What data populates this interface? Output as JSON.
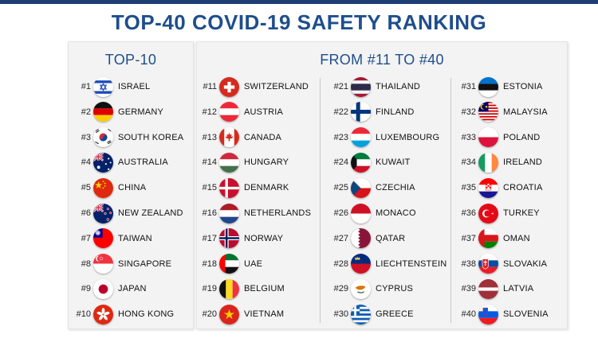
{
  "title": "TOP-40 COVID-19 SAFETY RANKING",
  "top10": {
    "heading": "TOP-10",
    "entries": [
      {
        "rank": "#1",
        "country": "ISRAEL",
        "flag": "israel-flag-icon"
      },
      {
        "rank": "#2",
        "country": "GERMANY",
        "flag": "germany-flag-icon"
      },
      {
        "rank": "#3",
        "country": "SOUTH KOREA",
        "flag": "south-korea-flag-icon"
      },
      {
        "rank": "#4",
        "country": "AUSTRALIA",
        "flag": "australia-flag-icon"
      },
      {
        "rank": "#5",
        "country": "CHINA",
        "flag": "china-flag-icon"
      },
      {
        "rank": "#6",
        "country": "NEW ZEALAND",
        "flag": "new-zealand-flag-icon"
      },
      {
        "rank": "#7",
        "country": "TAIWAN",
        "flag": "taiwan-flag-icon"
      },
      {
        "rank": "#8",
        "country": "SINGAPORE",
        "flag": "singapore-flag-icon"
      },
      {
        "rank": "#9",
        "country": "JAPAN",
        "flag": "japan-flag-icon"
      },
      {
        "rank": "#10",
        "country": "HONG KONG",
        "flag": "hong-kong-flag-icon"
      }
    ]
  },
  "rest": {
    "heading": "FROM #11 TO #40",
    "columns": [
      [
        {
          "rank": "#11",
          "country": "SWITZERLAND",
          "flag": "switzerland-flag-icon"
        },
        {
          "rank": "#12",
          "country": "AUSTRIA",
          "flag": "austria-flag-icon"
        },
        {
          "rank": "#13",
          "country": "CANADA",
          "flag": "canada-flag-icon"
        },
        {
          "rank": "#14",
          "country": "HUNGARY",
          "flag": "hungary-flag-icon"
        },
        {
          "rank": "#15",
          "country": "DENMARK",
          "flag": "denmark-flag-icon"
        },
        {
          "rank": "#16",
          "country": "NETHERLANDS",
          "flag": "netherlands-flag-icon"
        },
        {
          "rank": "#17",
          "country": "NORWAY",
          "flag": "norway-flag-icon"
        },
        {
          "rank": "#18",
          "country": "UAE",
          "flag": "uae-flag-icon"
        },
        {
          "rank": "#19",
          "country": "BELGIUM",
          "flag": "belgium-flag-icon"
        },
        {
          "rank": "#20",
          "country": "VIETNAM",
          "flag": "vietnam-flag-icon"
        }
      ],
      [
        {
          "rank": "#21",
          "country": "THAILAND",
          "flag": "thailand-flag-icon"
        },
        {
          "rank": "#22",
          "country": "FINLAND",
          "flag": "finland-flag-icon"
        },
        {
          "rank": "#23",
          "country": "LUXEMBOURG",
          "flag": "luxembourg-flag-icon"
        },
        {
          "rank": "#24",
          "country": "KUWAIT",
          "flag": "kuwait-flag-icon"
        },
        {
          "rank": "#25",
          "country": "CZECHIA",
          "flag": "czechia-flag-icon"
        },
        {
          "rank": "#26",
          "country": "MONACO",
          "flag": "monaco-flag-icon"
        },
        {
          "rank": "#27",
          "country": "QATAR",
          "flag": "qatar-flag-icon"
        },
        {
          "rank": "#28",
          "country": "LIECHTENSTEIN",
          "flag": "liechtenstein-flag-icon"
        },
        {
          "rank": "#29",
          "country": "CYPRUS",
          "flag": "cyprus-flag-icon"
        },
        {
          "rank": "#30",
          "country": "GREECE",
          "flag": "greece-flag-icon"
        }
      ],
      [
        {
          "rank": "#31",
          "country": "ESTONIA",
          "flag": "estonia-flag-icon"
        },
        {
          "rank": "#32",
          "country": "MALAYSIA",
          "flag": "malaysia-flag-icon"
        },
        {
          "rank": "#33",
          "country": "POLAND",
          "flag": "poland-flag-icon"
        },
        {
          "rank": "#34",
          "country": "IRELAND",
          "flag": "ireland-flag-icon"
        },
        {
          "rank": "#35",
          "country": "CROATIA",
          "flag": "croatia-flag-icon"
        },
        {
          "rank": "#36",
          "country": "TURKEY",
          "flag": "turkey-flag-icon"
        },
        {
          "rank": "#37",
          "country": "OMAN",
          "flag": "oman-flag-icon"
        },
        {
          "rank": "#38",
          "country": "SLOVAKIA",
          "flag": "slovakia-flag-icon"
        },
        {
          "rank": "#39",
          "country": "LATVIA",
          "flag": "latvia-flag-icon"
        },
        {
          "rank": "#40",
          "country": "SLOVENIA",
          "flag": "slovenia-flag-icon"
        }
      ]
    ]
  }
}
